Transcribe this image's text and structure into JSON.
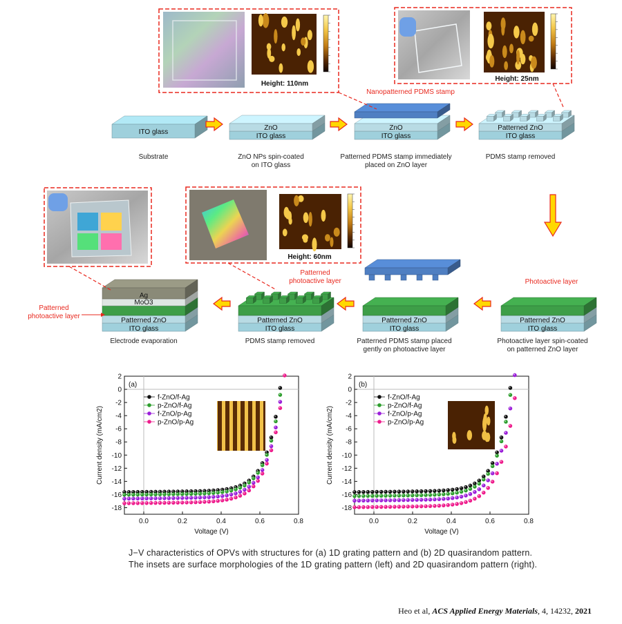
{
  "fabrication": {
    "top_row": [
      {
        "stack_lines": [
          "ITO glass"
        ],
        "caption": [
          "Substrate"
        ]
      },
      {
        "stack_lines": [
          "ZnO",
          "ITO glass"
        ],
        "caption": [
          "ZnO NPs spin-coated",
          "on ITO glass"
        ]
      },
      {
        "stack_lines": [
          "ZnO",
          "ITO glass"
        ],
        "caption": [
          "Patterned PDMS stamp immediately",
          "placed on ZnO layer"
        ]
      },
      {
        "stack_lines": [
          "Patterned ZnO",
          "ITO glass"
        ],
        "caption": [
          "PDMS stamp removed"
        ]
      }
    ],
    "stamp_label": "Nanopatterned PDMS stamp",
    "bottom_row": [
      {
        "stack_lines": [
          "Patterned ZnO",
          "ITO glass"
        ],
        "caption": [
          "Photoactive layer spin-coated",
          "on patterned ZnO layer"
        ],
        "red_label": [
          "Photoactive layer"
        ]
      },
      {
        "stack_lines": [
          "Patterned ZnO",
          "ITO glass"
        ],
        "caption": [
          "Patterned PDMS stamp placed",
          "gently on photoactive layer"
        ]
      },
      {
        "stack_lines": [
          "Patterned ZnO",
          "ITO glass"
        ],
        "caption": [
          "PDMS stamp removed"
        ],
        "red_label": [
          "Patterned",
          "photoactive layer"
        ]
      },
      {
        "stack_lines": [
          "Patterned ZnO",
          "ITO glass"
        ],
        "electrode_lines": [
          "Ag",
          "MoO3"
        ],
        "caption": [
          "Electrode evaporation"
        ],
        "red_label": [
          "Patterned",
          "photoactive layer"
        ]
      }
    ],
    "insets": [
      {
        "height_label": "Height: 110nm"
      },
      {
        "height_label": "Height: 25nm"
      },
      {
        "height_label": "Height: 60nm"
      }
    ],
    "colors": {
      "glass": "#9fd0dc",
      "zno": "#b8dbe4",
      "pdms": "#4f7fc2",
      "photoactive": "#3e9e48",
      "arrow_fill": "#ffd800",
      "arrow_stroke": "#e8281e",
      "electrode": "#8a8a78"
    }
  },
  "chart_data": [
    {
      "type": "scatter",
      "panel_label": "(a)",
      "xlabel": "Voltage (V)",
      "ylabel": "Current density (mA/cm2)",
      "xlim": [
        -0.1,
        0.8
      ],
      "ylim": [
        -19,
        2
      ],
      "xticks": [
        "0.0",
        "0.2",
        "0.4",
        "0.6",
        "0.8"
      ],
      "yticks": [
        "2",
        "0",
        "-2",
        "-4",
        "-6",
        "-8",
        "-10",
        "-12",
        "-14",
        "-16",
        "-18"
      ],
      "legend_position": "top-left",
      "series": [
        {
          "name": "f-ZnO/f-Ag",
          "color": "#111111",
          "jsc": -15.6,
          "voc": 0.705,
          "n": 2.0
        },
        {
          "name": "p-ZnO/f-Ag",
          "color": "#2e9e2e",
          "jsc": -16.0,
          "voc": 0.71,
          "n": 2.1
        },
        {
          "name": "f-ZnO/p-Ag",
          "color": "#9b1fd9",
          "jsc": -16.6,
          "voc": 0.715,
          "n": 2.1
        },
        {
          "name": "p-ZnO/p-Ag",
          "color": "#ee1c8c",
          "jsc": -17.3,
          "voc": 0.72,
          "n": 2.2
        }
      ]
    },
    {
      "type": "scatter",
      "panel_label": "(b)",
      "xlabel": "Voltage (V)",
      "ylabel": "Current density (mA/cm2)",
      "xlim": [
        -0.1,
        0.8
      ],
      "ylim": [
        -19,
        2
      ],
      "xticks": [
        "0.0",
        "0.2",
        "0.4",
        "0.6",
        "0.8"
      ],
      "yticks": [
        "2",
        "0",
        "-2",
        "-4",
        "-6",
        "-8",
        "-10",
        "-12",
        "-14",
        "-16",
        "-18"
      ],
      "legend_position": "top-left",
      "series": [
        {
          "name": "f-ZnO/f-Ag",
          "color": "#111111",
          "jsc": -15.6,
          "voc": 0.705,
          "n": 2.0
        },
        {
          "name": "p-ZnO/f-Ag",
          "color": "#2e9e2e",
          "jsc": -16.2,
          "voc": 0.71,
          "n": 2.1
        },
        {
          "name": "f-ZnO/p-Ag",
          "color": "#9b1fd9",
          "jsc": -16.9,
          "voc": 0.72,
          "n": 2.1
        },
        {
          "name": "p-ZnO/p-Ag",
          "color": "#ee1c8c",
          "jsc": -17.9,
          "voc": 0.735,
          "n": 2.2
        }
      ]
    }
  ],
  "caption": "J−V characteristics of OPVs with structures for (a) 1D grating pattern and (b) 2D quasirandom pattern. The insets are surface morphologies of the 1D grating pattern (left) and 2D quasirandom pattern (right).",
  "citation": {
    "authors": "Heo et al, ",
    "journal": "ACS Applied Energy Materials",
    "details": ", 4, 14232, ",
    "year": "2021"
  }
}
